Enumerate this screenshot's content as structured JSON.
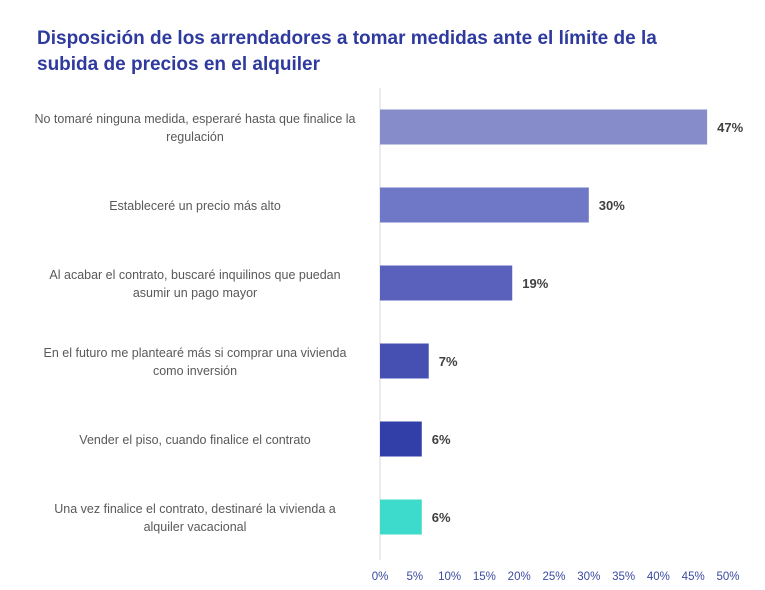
{
  "chart_data": {
    "type": "bar",
    "orientation": "horizontal",
    "title": "Disposición de los arrendadores a tomar medidas ante el límite de la subida de precios en el alquiler",
    "categories": [
      [
        "No tomaré ninguna medida, esperaré hasta que finalice la",
        "regulación"
      ],
      [
        "Estableceré un precio más alto"
      ],
      [
        "Al acabar el contrato, buscaré inquilinos que puedan",
        "asumir un pago mayor"
      ],
      [
        "En el futuro me plantearé más si comprar una vivienda",
        "como inversión"
      ],
      [
        "Vender el piso, cuando finalice el contrato"
      ],
      [
        "Una vez finalice el contrato, destinaré la vivienda a",
        "alquiler vacacional"
      ]
    ],
    "values": [
      47,
      30,
      19,
      7,
      6,
      6
    ],
    "value_labels": [
      "47%",
      "30%",
      "19%",
      "7%",
      "6%",
      "6%"
    ],
    "colors": [
      "#868bca",
      "#6f77c7",
      "#5961bd",
      "#4650b3",
      "#323fa8",
      "#3cdbcc"
    ],
    "xlim": [
      0,
      50
    ],
    "xticks": [
      "0%",
      "5%",
      "10%",
      "15%",
      "20%",
      "25%",
      "30%",
      "35%",
      "40%",
      "45%",
      "50%"
    ],
    "grid": false,
    "legend": "none",
    "title_color": "#2e3a9e"
  }
}
